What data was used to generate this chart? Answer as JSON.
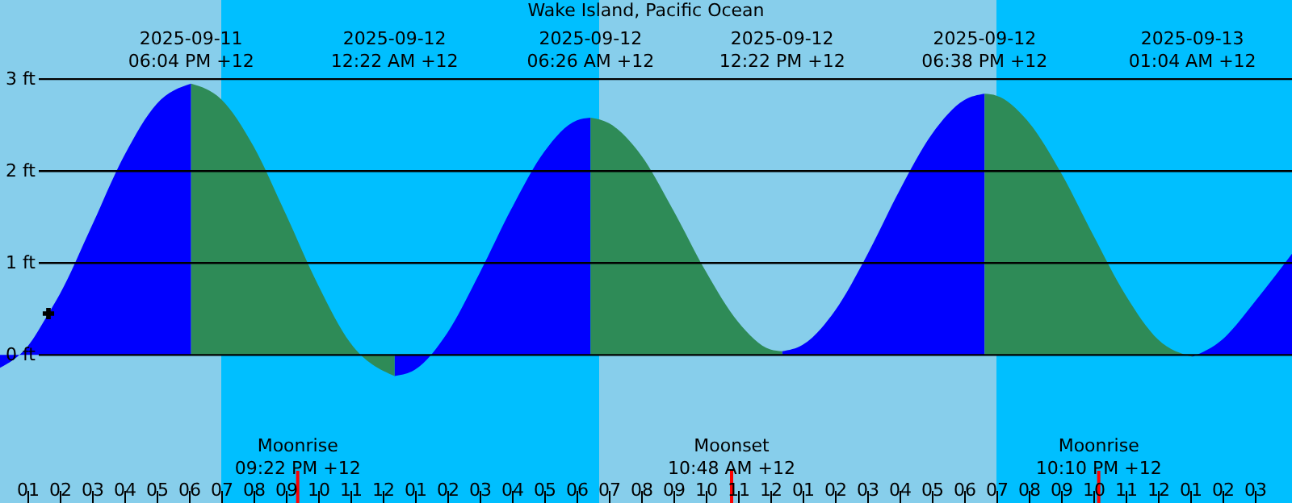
{
  "chart_data": {
    "type": "area",
    "title": "Wake Island, Pacific Ocean",
    "xlim": [
      "2025-09-11T12:09",
      "2025-09-13T04:09"
    ],
    "ylim": [
      -1.61,
      3.86
    ],
    "yticks": [
      {
        "value": 0,
        "label": "0 ft"
      },
      {
        "value": 1,
        "label": "1 ft"
      },
      {
        "value": 2,
        "label": "2 ft"
      },
      {
        "value": 3,
        "label": "3 ft"
      }
    ],
    "xticks": [
      {
        "value": "2025-09-11T13:00",
        "label": "01"
      },
      {
        "value": "2025-09-11T14:00",
        "label": "02"
      },
      {
        "value": "2025-09-11T15:00",
        "label": "03"
      },
      {
        "value": "2025-09-11T16:00",
        "label": "04"
      },
      {
        "value": "2025-09-11T17:00",
        "label": "05"
      },
      {
        "value": "2025-09-11T18:00",
        "label": "06"
      },
      {
        "value": "2025-09-11T19:00",
        "label": "07"
      },
      {
        "value": "2025-09-11T20:00",
        "label": "08"
      },
      {
        "value": "2025-09-11T21:00",
        "label": "09"
      },
      {
        "value": "2025-09-11T22:00",
        "label": "10"
      },
      {
        "value": "2025-09-11T23:00",
        "label": "11"
      },
      {
        "value": "2025-09-12T00:00",
        "label": "12"
      },
      {
        "value": "2025-09-12T01:00",
        "label": "01"
      },
      {
        "value": "2025-09-12T02:00",
        "label": "02"
      },
      {
        "value": "2025-09-12T03:00",
        "label": "03"
      },
      {
        "value": "2025-09-12T04:00",
        "label": "04"
      },
      {
        "value": "2025-09-12T05:00",
        "label": "05"
      },
      {
        "value": "2025-09-12T06:00",
        "label": "06"
      },
      {
        "value": "2025-09-12T07:00",
        "label": "07"
      },
      {
        "value": "2025-09-12T08:00",
        "label": "08"
      },
      {
        "value": "2025-09-12T09:00",
        "label": "09"
      },
      {
        "value": "2025-09-12T10:00",
        "label": "10"
      },
      {
        "value": "2025-09-12T11:00",
        "label": "11"
      },
      {
        "value": "2025-09-12T12:00",
        "label": "12"
      },
      {
        "value": "2025-09-12T13:00",
        "label": "01"
      },
      {
        "value": "2025-09-12T14:00",
        "label": "02"
      },
      {
        "value": "2025-09-12T15:00",
        "label": "03"
      },
      {
        "value": "2025-09-12T16:00",
        "label": "04"
      },
      {
        "value": "2025-09-12T17:00",
        "label": "05"
      },
      {
        "value": "2025-09-12T18:00",
        "label": "06"
      },
      {
        "value": "2025-09-12T19:00",
        "label": "07"
      },
      {
        "value": "2025-09-12T20:00",
        "label": "08"
      },
      {
        "value": "2025-09-12T21:00",
        "label": "09"
      },
      {
        "value": "2025-09-12T22:00",
        "label": "10"
      },
      {
        "value": "2025-09-12T23:00",
        "label": "11"
      },
      {
        "value": "2025-09-13T00:00",
        "label": "12"
      },
      {
        "value": "2025-09-13T01:00",
        "label": "01"
      },
      {
        "value": "2025-09-13T02:00",
        "label": "02"
      },
      {
        "value": "2025-09-13T03:00",
        "label": "03"
      }
    ],
    "grid": "y",
    "series": [
      {
        "color": "#0000ff",
        "x": [
          "2025-09-11T12:09",
          "2025-09-11T13:00",
          "2025-09-11T13:39",
          "2025-09-11T14:00",
          "2025-09-11T15:00",
          "2025-09-11T16:00",
          "2025-09-11T17:00",
          "2025-09-11T18:04",
          "2025-09-11T21:00",
          "2025-09-12T00:22",
          "2025-09-12T01:00",
          "2025-09-12T02:00",
          "2025-09-12T03:00",
          "2025-09-12T04:00",
          "2025-09-12T05:00",
          "2025-09-12T06:00",
          "2025-09-12T06:26",
          "2025-09-12T09:00",
          "2025-09-12T12:22",
          "2025-09-12T13:00",
          "2025-09-12T14:00",
          "2025-09-12T15:00",
          "2025-09-12T16:00",
          "2025-09-12T17:00",
          "2025-09-12T18:00",
          "2025-09-12T18:38",
          "2025-09-12T22:00",
          "2025-09-13T01:04",
          "2025-09-13T02:00",
          "2025-09-13T03:00",
          "2025-09-13T04:09"
        ],
        "values": [
          -0.14,
          0.09,
          0.45,
          0.66,
          1.41,
          2.17,
          2.73,
          2.95,
          null,
          -0.23,
          -0.16,
          0.24,
          0.89,
          1.6,
          2.21,
          2.55,
          2.58,
          null,
          0.04,
          0.11,
          0.48,
          1.09,
          1.79,
          2.4,
          2.77,
          2.84,
          null,
          -0.02,
          0.17,
          0.58,
          1.1
        ]
      },
      {
        "color": "#2e8b57",
        "x": [
          "2025-09-11T18:04",
          "2025-09-11T19:00",
          "2025-09-11T20:00",
          "2025-09-11T21:00",
          "2025-09-11T22:00",
          "2025-09-11T23:00",
          "2025-09-12T00:22",
          "2025-09-12T03:00",
          "2025-09-12T06:26",
          "2025-09-12T07:00",
          "2025-09-12T08:00",
          "2025-09-12T09:00",
          "2025-09-12T10:00",
          "2025-09-12T11:00",
          "2025-09-12T12:00",
          "2025-09-12T12:22",
          "2025-09-12T15:00",
          "2025-09-12T18:38",
          "2025-09-12T19:00",
          "2025-09-12T20:00",
          "2025-09-12T21:00",
          "2025-09-12T22:00",
          "2025-09-12T23:00",
          "2025-09-13T00:00",
          "2025-09-13T01:04"
        ],
        "values": [
          2.95,
          2.78,
          2.27,
          1.53,
          0.76,
          0.13,
          -0.23,
          null,
          2.58,
          2.52,
          2.17,
          1.57,
          0.91,
          0.36,
          0.06,
          0.04,
          null,
          2.84,
          2.82,
          2.53,
          1.98,
          1.3,
          0.65,
          0.17,
          -0.02
        ]
      },
      {
        "type": "scatter",
        "marker": "cross",
        "color": "#000000",
        "x": [
          "2025-09-11T13:39"
        ],
        "values": [
          0.45
        ]
      }
    ],
    "bands": [
      {
        "axis": "x",
        "from": "2025-09-11T12:09",
        "to": "2025-09-11T19:00",
        "color": "#87ceeb"
      },
      {
        "axis": "x",
        "from": "2025-09-11T19:00",
        "to": "2025-09-12T06:42",
        "color": "#00bfff"
      },
      {
        "axis": "x",
        "from": "2025-09-12T06:42",
        "to": "2025-09-12T19:00",
        "color": "#87ceeb"
      },
      {
        "axis": "x",
        "from": "2025-09-12T19:00",
        "to": "2025-09-13T04:09",
        "color": "#00bfff"
      }
    ],
    "ref_lines": [
      {
        "axis": "x",
        "value": "2025-09-11T21:22",
        "label": "Moonrise\n09:22 PM +12",
        "color": "#ff0000"
      },
      {
        "axis": "x",
        "value": "2025-09-12T10:48",
        "label": "Moonset\n10:48 AM +12",
        "color": "#ff0000"
      },
      {
        "axis": "x",
        "value": "2025-09-12T22:10",
        "label": "Moonrise\n10:10 PM +12",
        "color": "#ff0000"
      }
    ],
    "annotations": [
      "2025-09-11\n06:04 PM +12",
      "2025-09-12\n12:22 AM +12",
      "2025-09-12\n06:26 AM +12",
      "2025-09-12\n12:22 PM +12",
      "2025-09-12\n06:38 PM +12",
      "2025-09-13\n01:04 AM +12"
    ]
  }
}
